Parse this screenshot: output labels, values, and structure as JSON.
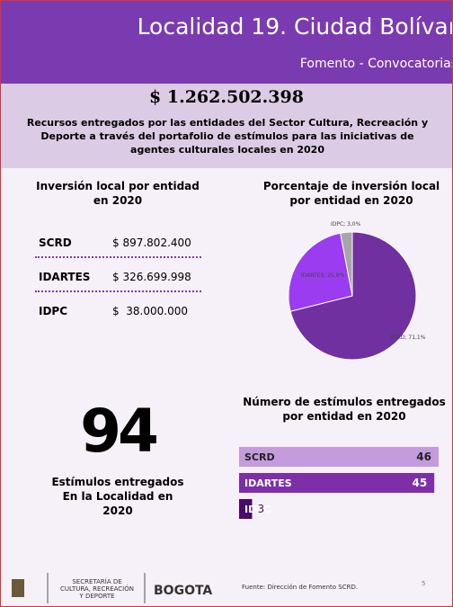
{
  "header": {
    "title": "Localidad 19. Ciudad Bolívar",
    "subtitle": "Fomento - Convocatorias"
  },
  "summary": {
    "amount": "$ 1.262.502.398",
    "description": "Recursos entregados por las entidades del Sector Cultura, Recreación y Deporte a través del portafolio de estímulos para las iniciativas de agentes culturales locales en 2020"
  },
  "investment": {
    "title": "Inversión local por entidad en 2020",
    "rows": [
      [
        "SCRD",
        "$ 897.802.400"
      ],
      [
        "IDARTES",
        "$ 326.699.998"
      ],
      [
        "IDPC",
        "$  38.000.000"
      ]
    ]
  },
  "chart_data": [
    {
      "type": "pie",
      "title": "Porcentaje de inversión local por entidad en 2020",
      "categories": [
        "SCRD",
        "IDARTES",
        "IDPC"
      ],
      "values": [
        71.1,
        25.9,
        3.0
      ],
      "value_labels": [
        "SCRD; 71,1%",
        "IDARTES; 25,9%",
        "IDPC; 3,0%"
      ],
      "colors": [
        "#7030a0",
        "#9b3cf0",
        "#a6a6a6"
      ]
    },
    {
      "type": "bar",
      "orientation": "horizontal",
      "title": "Número de estímulos entregados por entidad en 2020",
      "categories": [
        "SCRD",
        "IDARTES",
        "IDPC"
      ],
      "values": [
        46,
        45,
        3
      ],
      "colors": [
        "#c49bdd",
        "#7e2fa8",
        "#4a0a6b"
      ]
    }
  ],
  "stat": {
    "value": "94",
    "caption": "Estímulos entregados\nEn la Localidad en\n2020"
  },
  "footer": {
    "logo_text": "SECRETARÍA DE\nCULTURA, RECREACIÓN\nY DEPORTE",
    "city": "BOGOTA",
    "source": "Fuente: Dirección de Fomento SCRD.",
    "page": "5"
  }
}
